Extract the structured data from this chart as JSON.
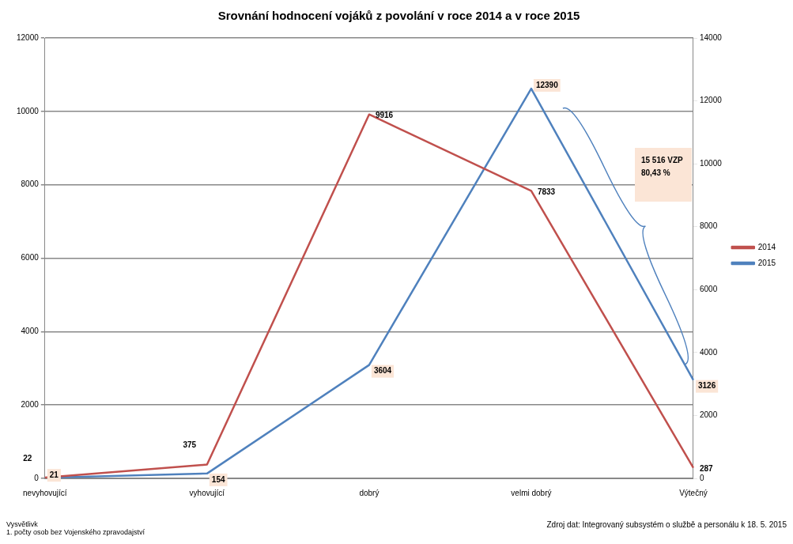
{
  "chart_data": {
    "type": "line",
    "title": "Srovnání hodnocení vojáků z povolání v roce 2014 a v roce 2015",
    "categories": [
      "nevyhovující",
      "vyhovující",
      "dobrý",
      "velmi dobrý",
      "Výtečný"
    ],
    "series": [
      {
        "name": "2014",
        "color": "#c0504d",
        "values": [
          22,
          375,
          9916,
          7833,
          287
        ]
      },
      {
        "name": "2015",
        "color": "#4f81bd",
        "values": [
          21,
          154,
          3604,
          12390,
          3126
        ],
        "axis": "y2"
      }
    ],
    "ylim": [
      0,
      12000
    ],
    "yticks": [
      0,
      2000,
      4000,
      6000,
      8000,
      10000,
      12000
    ],
    "y2lim": [
      0,
      14000
    ],
    "y2ticks": [
      0,
      2000,
      4000,
      6000,
      8000,
      10000,
      12000,
      14000
    ],
    "grid": "y",
    "legend": "right",
    "marker": "none",
    "line_style": "solid",
    "data_labels": true,
    "annotations": [
      "15 516 VZP\n80,43 %",
      "Vysvětlivk",
      "1. počty osob bez Vojenského zpravodajství",
      "Zdroj dat:  Integrovaný subsystém o službě a personálu k 18. 5. 2015"
    ]
  }
}
